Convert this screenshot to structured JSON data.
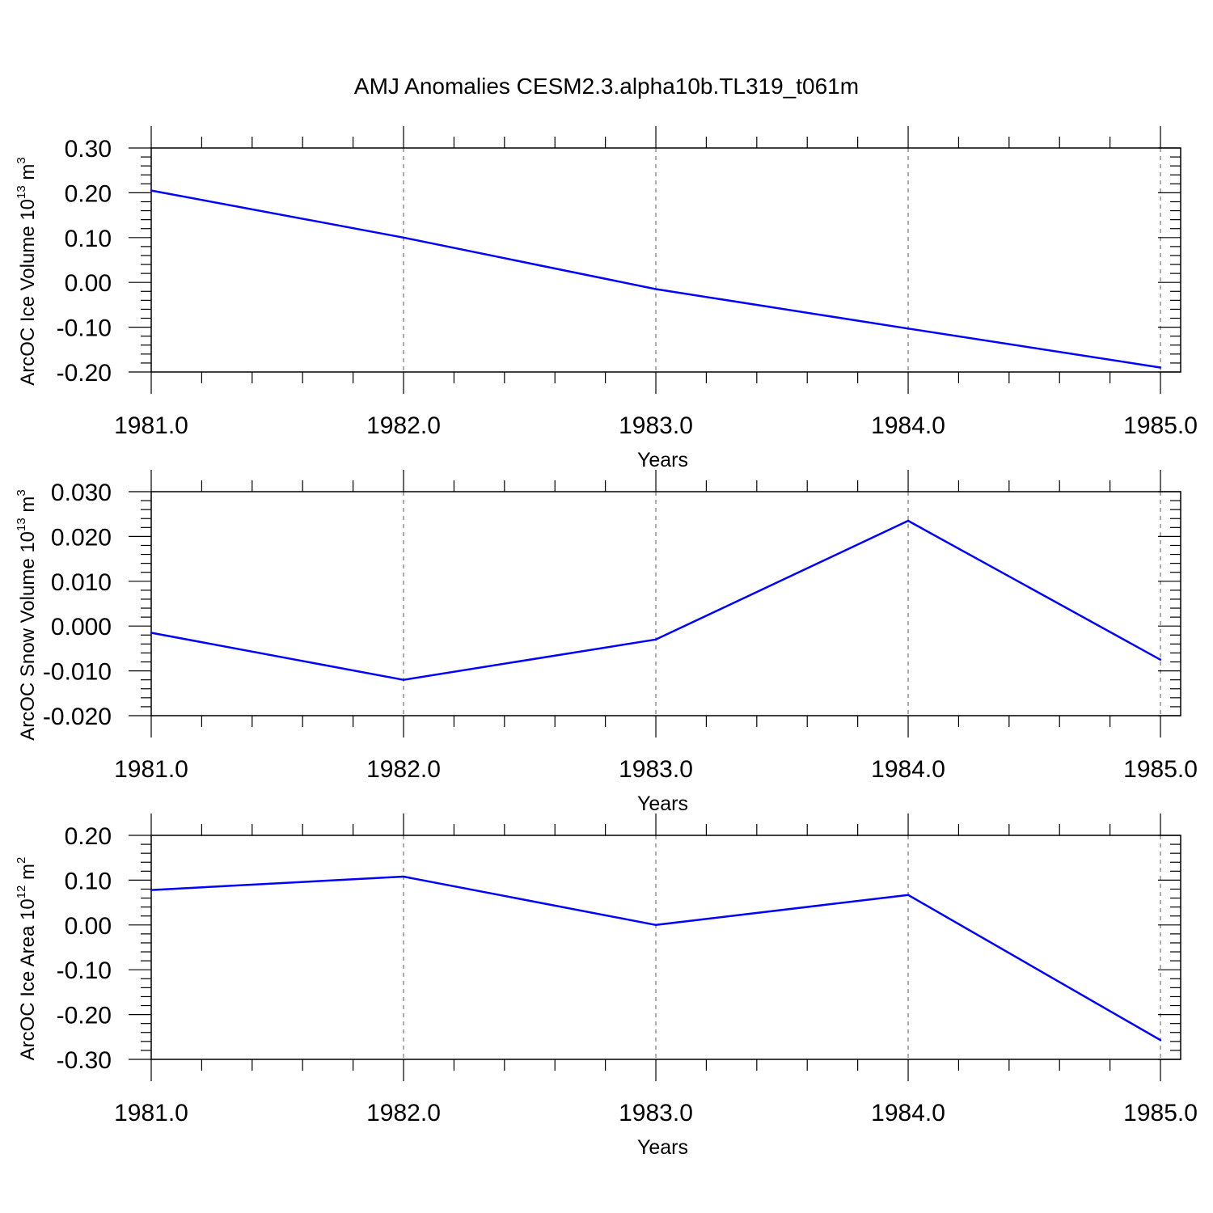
{
  "figure_title": "AMJ Anomalies CESM2.3.alpha10b.TL319_t061m",
  "line_color": "#0000ff",
  "chart_data": [
    {
      "type": "line",
      "ylabel": {
        "text": "ArcOC Ice Volume 10",
        "exp": "13",
        "unit": " m",
        "unit_exp": "3"
      },
      "xlabel": "Years",
      "x": [
        1981,
        1982,
        1983,
        1984,
        1985
      ],
      "x_ticks": [
        "1981.0",
        "1982.0",
        "1983.0",
        "1984.0",
        "1985.0"
      ],
      "xlim": [
        1981,
        1985.08
      ],
      "y": [
        0.205,
        0.1,
        -0.015,
        -0.103,
        -0.19
      ],
      "y_ticks": [
        0.3,
        0.2,
        0.1,
        0.0,
        -0.1,
        -0.2
      ],
      "y_tick_labels": [
        "0.30",
        "0.20",
        "0.10",
        "0.00",
        "-0.10",
        "-0.20"
      ],
      "ylim": [
        -0.2,
        0.3
      ],
      "grid": "vertical dashed at major x ticks"
    },
    {
      "type": "line",
      "ylabel": {
        "text": "ArcOC Snow Volume 10",
        "exp": "13",
        "unit": " m",
        "unit_exp": "3"
      },
      "xlabel": "Years",
      "x": [
        1981,
        1982,
        1983,
        1984,
        1985
      ],
      "x_ticks": [
        "1981.0",
        "1982.0",
        "1983.0",
        "1984.0",
        "1985.0"
      ],
      "xlim": [
        1981,
        1985.08
      ],
      "y": [
        -0.0015,
        -0.012,
        -0.003,
        0.0235,
        -0.0075
      ],
      "y_ticks": [
        0.03,
        0.02,
        0.01,
        0.0,
        -0.01,
        -0.02
      ],
      "y_tick_labels": [
        "0.030",
        "0.020",
        "0.010",
        "0.000",
        "-0.010",
        "-0.020"
      ],
      "ylim": [
        -0.02,
        0.03
      ],
      "grid": "vertical dashed at major x ticks"
    },
    {
      "type": "line",
      "ylabel": {
        "text": "ArcOC Ice Area 10",
        "exp": "12",
        "unit": " m",
        "unit_exp": "2"
      },
      "xlabel": "Years",
      "x": [
        1981,
        1982,
        1983,
        1984,
        1985
      ],
      "x_ticks": [
        "1981.0",
        "1982.0",
        "1983.0",
        "1984.0",
        "1985.0"
      ],
      "xlim": [
        1981,
        1985.08
      ],
      "y": [
        0.078,
        0.108,
        0.0,
        0.067,
        -0.257
      ],
      "y_ticks": [
        0.2,
        0.1,
        0.0,
        -0.1,
        -0.2,
        -0.3
      ],
      "y_tick_labels": [
        "0.20",
        "0.10",
        "0.00",
        "-0.10",
        "-0.20",
        "-0.30"
      ],
      "ylim": [
        -0.3,
        0.2
      ],
      "grid": "vertical dashed at major x ticks"
    }
  ]
}
